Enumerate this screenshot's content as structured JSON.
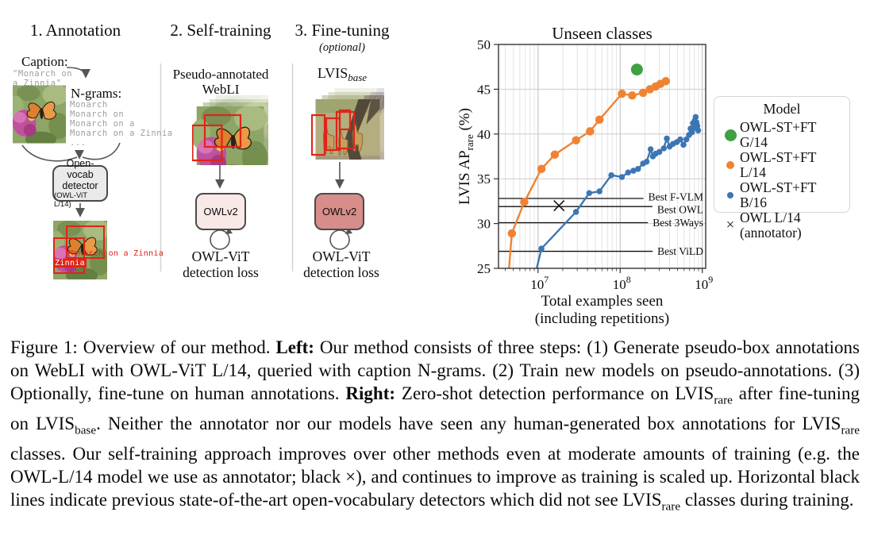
{
  "figure": {
    "step1": {
      "title": "1. Annotation",
      "caption_label": "Caption:",
      "caption_lines": [
        "\"Monarch on",
        " a Zinnia\""
      ],
      "ngrams_label": "N-grams:",
      "ngram_lines": [
        "Monarch",
        "Monarch on",
        "Monarch on a",
        "Monarch on a Zinnia",
        "..."
      ],
      "detector_lines": [
        "Open-vocab",
        "detector"
      ],
      "detector_sub": "(OWL-ViT L/14)",
      "pred_label_1": "Monarch on a Zinnia",
      "pred_label_2": "Zinnia"
    },
    "step2": {
      "title": "2. Self-training",
      "data_lines": [
        "Pseudo-annotated",
        "WebLI"
      ],
      "model_label": "OWLv2",
      "loss_lines": [
        "OWL-ViT",
        "detection loss"
      ]
    },
    "step3": {
      "title": "3. Fine-tuning",
      "subtitle": "(optional)",
      "dataset_main": "LVIS",
      "dataset_sub": "base",
      "model_label": "OWLv2",
      "loss_lines": [
        "OWL-ViT",
        "detection loss"
      ]
    }
  },
  "chart_data": {
    "type": "scatter",
    "title": "Unseen classes",
    "xlabel_lines": [
      "Total examples seen",
      "(including repetitions)"
    ],
    "ylabel_parts": {
      "main": "LVIS AP",
      "sub": "rare",
      "rest": " (%)"
    },
    "xscale": "log",
    "xlim": [
      3300000,
      1100000000
    ],
    "ylim": [
      25,
      50
    ],
    "yticks": [
      25,
      30,
      35,
      40,
      45,
      50
    ],
    "xticks": [
      10000000,
      100000000,
      1000000000
    ],
    "grid": true,
    "legend_title": "Model",
    "legend_position": "right",
    "baselines": [
      {
        "label": "Best F-VLM",
        "value": 32.8
      },
      {
        "label": "Best OWL",
        "value": 31.9
      },
      {
        "label": "Best 3Ways",
        "value": 30.1
      },
      {
        "label": "Best ViLD",
        "value": 26.9
      }
    ],
    "series": [
      {
        "name": "OWL-ST+FT G/14",
        "legend_lines": [
          "OWL-ST+FT G/14"
        ],
        "color": "#3fa142",
        "marker": "circle",
        "marker_size": 15,
        "line": false,
        "points": [
          [
            160000000,
            47.2
          ]
        ]
      },
      {
        "name": "OWL-ST+FT L/14",
        "legend_lines": [
          "OWL-ST+FT L/14"
        ],
        "color": "#ef8333",
        "marker": "circle",
        "marker_size": 10.5,
        "line": true,
        "points": [
          [
            4300000,
            23.5
          ],
          [
            4800000,
            28.9
          ],
          [
            6800000,
            32.4
          ],
          [
            11000000,
            36.1
          ],
          [
            16000000,
            37.7
          ],
          [
            29000000,
            39.3
          ],
          [
            43000000,
            40.3
          ],
          [
            56000000,
            41.6
          ],
          [
            105000000,
            44.5
          ],
          [
            140000000,
            44.3
          ],
          [
            190000000,
            44.6
          ],
          [
            230000000,
            45.0
          ],
          [
            270000000,
            45.3
          ],
          [
            310000000,
            45.6
          ],
          [
            360000000,
            45.9
          ]
        ]
      },
      {
        "name": "OWL-ST+FT B/16",
        "legend_lines": [
          "OWL-ST+FT B/16"
        ],
        "color": "#3b76b4",
        "marker": "circle",
        "marker_size": 7.5,
        "line": true,
        "points": [
          [
            8800000,
            23.5
          ],
          [
            11000000,
            27.2
          ],
          [
            29000000,
            31.3
          ],
          [
            42000000,
            33.4
          ],
          [
            56000000,
            33.6
          ],
          [
            78000000,
            35.4
          ],
          [
            105000000,
            35.2
          ],
          [
            125000000,
            35.7
          ],
          [
            145000000,
            35.9
          ],
          [
            165000000,
            36.1
          ],
          [
            190000000,
            36.7
          ],
          [
            210000000,
            36.9
          ],
          [
            235000000,
            38.3
          ],
          [
            250000000,
            37.5
          ],
          [
            270000000,
            37.8
          ],
          [
            300000000,
            38.0
          ],
          [
            340000000,
            38.4
          ],
          [
            370000000,
            39.5
          ],
          [
            400000000,
            38.6
          ],
          [
            440000000,
            38.9
          ],
          [
            490000000,
            39.1
          ],
          [
            540000000,
            39.4
          ],
          [
            590000000,
            38.8
          ],
          [
            640000000,
            39.4
          ],
          [
            690000000,
            39.9
          ],
          [
            720000000,
            40.6
          ],
          [
            750000000,
            40.2
          ],
          [
            770000000,
            41.2
          ],
          [
            790000000,
            40.7
          ],
          [
            810000000,
            41.5
          ],
          [
            830000000,
            41.9
          ],
          [
            850000000,
            41.3
          ],
          [
            870000000,
            40.9
          ],
          [
            890000000,
            40.4
          ]
        ]
      },
      {
        "name": "OWL L/14 (annotator)",
        "legend_lines": [
          "OWL L/14",
          "(annotator)"
        ],
        "color": "#1a1a1a",
        "marker": "x",
        "marker_size": 13,
        "line": false,
        "points": [
          [
            18000000,
            32.0
          ]
        ]
      }
    ]
  },
  "caption": {
    "segments": [
      {
        "t": "Figure 1: Overview of our method. "
      },
      {
        "t": "Left:",
        "b": true
      },
      {
        "t": " Our method consists of three steps: (1) Generate pseudo-box annotations on WebLI with OWL-ViT L/14, queried with caption N-grams. (2) Train new models on pseudo-annotations. (3) Optionally, fine-tune on human annotations. "
      },
      {
        "t": "Right:",
        "b": true
      },
      {
        "t": " Zero-shot detection performance on LVIS"
      },
      {
        "t": "rare",
        "sub": true
      },
      {
        "t": " after fine-tuning on LVIS"
      },
      {
        "t": "base",
        "sub": true
      },
      {
        "t": ". Neither the annotator nor our models have seen any human-generated box annotations for LVIS"
      },
      {
        "t": "rare",
        "sub": true
      },
      {
        "t": " classes. Our self-training approach improves over other methods even at moderate amounts of training (e.g. the OWL-L/14 model we use as annotator; black ×), and continues to improve as training is scaled up. Horizontal black lines indicate previous state-of-the-art open-vocabulary detectors which did not see LVIS"
      },
      {
        "t": "rare",
        "sub": true
      },
      {
        "t": " classes during training."
      }
    ]
  }
}
